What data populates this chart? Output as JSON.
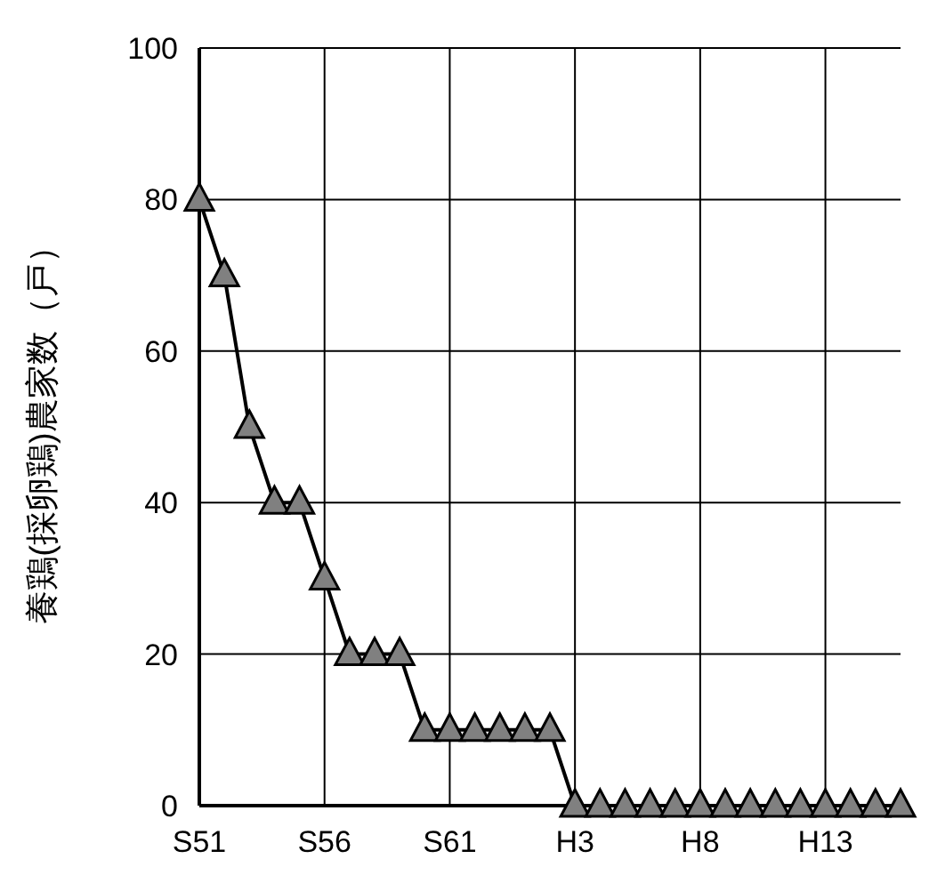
{
  "chart_data": {
    "type": "line",
    "ylabel": "養鶏(採卵鶏)農家数（戸）",
    "categories": [
      "S51",
      null,
      null,
      null,
      null,
      "S56",
      null,
      null,
      null,
      null,
      "S61",
      null,
      null,
      null,
      null,
      "H3",
      null,
      null,
      null,
      null,
      "H8",
      null,
      null,
      null,
      null,
      "H13",
      null,
      null,
      null
    ],
    "series": [
      {
        "color": "#808080",
        "values": [
          80,
          70,
          50,
          40,
          40,
          30,
          20,
          20,
          20,
          10,
          10,
          10,
          10,
          10,
          10,
          0,
          0,
          0,
          0,
          0,
          0,
          0,
          0,
          0,
          0,
          0,
          0,
          0,
          0
        ]
      }
    ],
    "ylim": [
      0,
      100
    ],
    "yticks": [
      0,
      20,
      40,
      60,
      80,
      100
    ],
    "grid": true,
    "marker": "triangle",
    "line_style": "solid"
  }
}
